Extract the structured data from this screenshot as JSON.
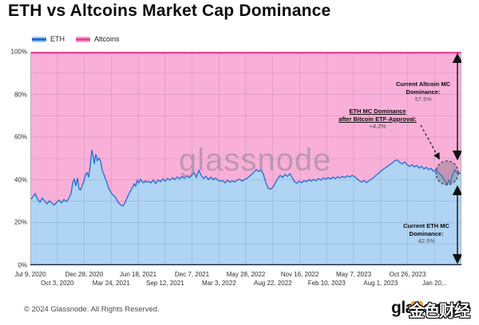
{
  "title": "ETH vs Altcoins Market Cap Dominance",
  "watermark": "glassnode",
  "legend": [
    {
      "label": "ETH",
      "line_color": "#1d6ed2",
      "halo_color": "#9ec7ee"
    },
    {
      "label": "Altcoins",
      "line_color": "#e8469a",
      "halo_color": "#f59cc9"
    }
  ],
  "annotations": {
    "altcoin": {
      "line1": "Current Altcoin MC",
      "line2": "Dominance:",
      "value": "57.5%"
    },
    "etf": {
      "line1": "ETH MC Dominance",
      "line2": "after Bitcoin ETF-Approval:",
      "value": "+4.2%"
    },
    "eth": {
      "line1": "Current ETH MC",
      "line2": "Dominance:",
      "value": "42.5%"
    }
  },
  "footer": {
    "copyright": "© 2024 Glassnode. All Rights Reserved.",
    "logo": "glassnode",
    "logo_overlay": "金色财经"
  },
  "colors": {
    "eth_line": "#1d6ed2",
    "eth_fill": "#b0d4f3",
    "alt_line": "#e8469a",
    "alt_fill": "#f9b0d8",
    "grid": "rgba(90,90,130,0.16)",
    "axis_bottom": "#18263f",
    "plot_border": "#b2b2ba",
    "arrow": "#111111",
    "circle_fill": "rgba(105,105,120,0.38)",
    "circle_stroke": "#4a4a52"
  },
  "chart_data": {
    "type": "area",
    "stacked_to_pct": 100,
    "title": "ETH vs Altcoins Market Cap Dominance",
    "x_range": [
      "Jul 9, 2020",
      "Jan 20, 2024"
    ],
    "ylim": [
      0,
      100
    ],
    "grid": true,
    "y_ticks": [
      "0%",
      "20%",
      "40%",
      "60%",
      "80%",
      "100%"
    ],
    "x_ticks_row1": [
      "Jul 9, 2020",
      "Dec 28, 2020",
      "Jun 18, 2021",
      "Dec 7, 2021",
      "May 28, 2022",
      "Nov 16, 2022",
      "May 7, 2023",
      "Oct 26, 2023"
    ],
    "x_ticks_row2": [
      "Oct 3, 2020",
      "Mar 24, 2021",
      "Sep 12, 2021",
      "Mar 3, 2022",
      "Aug 22, 2022",
      "Feb 10, 2023",
      "Aug 1, 2023",
      "Jan 20,.."
    ],
    "current_eth_dominance_pct": 42.5,
    "current_altcoin_dominance_pct": 57.5,
    "eth_dominance_change_after_etf_pct": 4.2,
    "series": [
      {
        "name": "ETH",
        "color": "#1d6ed2",
        "fill": "#b0d4f3",
        "x_unit": "plot-x 0-540 mapped linearly Jul 9 2020 to Jan 20 2024",
        "y_unit": "% dominance",
        "points": [
          [
            0,
            30.5
          ],
          [
            3,
            32
          ],
          [
            6,
            33.5
          ],
          [
            9,
            31
          ],
          [
            12,
            29.5
          ],
          [
            15,
            31.5
          ],
          [
            18,
            30
          ],
          [
            21,
            28.8
          ],
          [
            24,
            30.2
          ],
          [
            27,
            29
          ],
          [
            30,
            28.2
          ],
          [
            33,
            29.5
          ],
          [
            36,
            30.5
          ],
          [
            39,
            29.2
          ],
          [
            42,
            30.8
          ],
          [
            45,
            29.8
          ],
          [
            48,
            31.2
          ],
          [
            51,
            33.5
          ],
          [
            53,
            38.5
          ],
          [
            55,
            40.3
          ],
          [
            57,
            37.2
          ],
          [
            59,
            40.8
          ],
          [
            61,
            35.8
          ],
          [
            63,
            35.3
          ],
          [
            65,
            37.5
          ],
          [
            67,
            39.2
          ],
          [
            69,
            42.3
          ],
          [
            71,
            43.4
          ],
          [
            73,
            41.2
          ],
          [
            75,
            46.5
          ],
          [
            77,
            54
          ],
          [
            79,
            50.5
          ],
          [
            80,
            47.5
          ],
          [
            82,
            52
          ],
          [
            84,
            49
          ],
          [
            86,
            50.2
          ],
          [
            88,
            48.8
          ],
          [
            90,
            44.5
          ],
          [
            92,
            42.8
          ],
          [
            94,
            40.5
          ],
          [
            96,
            38.8
          ],
          [
            98,
            36
          ],
          [
            100,
            34.8
          ],
          [
            102,
            33.6
          ],
          [
            104,
            32.7
          ],
          [
            106,
            32.2
          ],
          [
            108,
            30.8
          ],
          [
            110,
            29.6
          ],
          [
            112,
            28.7
          ],
          [
            114,
            28.1
          ],
          [
            116,
            27.8
          ],
          [
            118,
            28.8
          ],
          [
            120,
            30.6
          ],
          [
            122,
            32.2
          ],
          [
            124,
            33.8
          ],
          [
            126,
            35.2
          ],
          [
            128,
            36.4
          ],
          [
            130,
            38.2
          ],
          [
            132,
            37
          ],
          [
            134,
            39.8
          ],
          [
            136,
            38.6
          ],
          [
            138,
            40.3
          ],
          [
            140,
            39.2
          ],
          [
            142,
            38.6
          ],
          [
            144,
            39.6
          ],
          [
            146,
            38.9
          ],
          [
            148,
            39.3
          ],
          [
            151,
            38.6
          ],
          [
            154,
            39.9
          ],
          [
            157,
            38.3
          ],
          [
            160,
            40
          ],
          [
            163,
            39.1
          ],
          [
            166,
            40.4
          ],
          [
            169,
            39.4
          ],
          [
            172,
            40.7
          ],
          [
            175,
            39.8
          ],
          [
            178,
            41
          ],
          [
            181,
            40.1
          ],
          [
            184,
            41.4
          ],
          [
            187,
            40.4
          ],
          [
            190,
            41.6
          ],
          [
            193,
            40.7
          ],
          [
            196,
            41.9
          ],
          [
            199,
            41
          ],
          [
            202,
            42
          ],
          [
            205,
            43.4
          ],
          [
            208,
            41.2
          ],
          [
            211,
            44.4
          ],
          [
            214,
            42.1
          ],
          [
            217,
            40.6
          ],
          [
            220,
            41.7
          ],
          [
            223,
            40.1
          ],
          [
            226,
            41.3
          ],
          [
            229,
            40.1
          ],
          [
            232,
            40.8
          ],
          [
            235,
            39.9
          ],
          [
            238,
            39.4
          ],
          [
            241,
            39.6
          ],
          [
            244,
            38.6
          ],
          [
            247,
            39.8
          ],
          [
            250,
            38.9
          ],
          [
            253,
            39.6
          ],
          [
            256,
            38.9
          ],
          [
            259,
            39.9
          ],
          [
            262,
            40.3
          ],
          [
            265,
            39.4
          ],
          [
            268,
            40.1
          ],
          [
            271,
            40.6
          ],
          [
            274,
            41.5
          ],
          [
            277,
            42.5
          ],
          [
            280,
            43.6
          ],
          [
            283,
            44.8
          ],
          [
            286,
            43.9
          ],
          [
            289,
            44.6
          ],
          [
            292,
            42.6
          ],
          [
            295,
            38.6
          ],
          [
            298,
            36.1
          ],
          [
            301,
            35.6
          ],
          [
            304,
            36.6
          ],
          [
            307,
            38.6
          ],
          [
            310,
            40.6
          ],
          [
            313,
            42.1
          ],
          [
            316,
            41.1
          ],
          [
            319,
            42.6
          ],
          [
            322,
            41.6
          ],
          [
            325,
            42.9
          ],
          [
            328,
            41.1
          ],
          [
            331,
            39.1
          ],
          [
            334,
            38.4
          ],
          [
            337,
            39.4
          ],
          [
            340,
            38.7
          ],
          [
            343,
            39.7
          ],
          [
            346,
            39.1
          ],
          [
            349,
            40.1
          ],
          [
            352,
            39.4
          ],
          [
            355,
            40.3
          ],
          [
            358,
            39.6
          ],
          [
            361,
            40.6
          ],
          [
            364,
            39.9
          ],
          [
            367,
            40.9
          ],
          [
            370,
            40.3
          ],
          [
            373,
            41.1
          ],
          [
            376,
            40.4
          ],
          [
            379,
            41.3
          ],
          [
            382,
            40.6
          ],
          [
            385,
            41.4
          ],
          [
            388,
            40.9
          ],
          [
            391,
            41.6
          ],
          [
            394,
            41.1
          ],
          [
            397,
            41.9
          ],
          [
            400,
            41.3
          ],
          [
            403,
            42.1
          ],
          [
            406,
            41.5
          ],
          [
            409,
            40.6
          ],
          [
            412,
            39.6
          ],
          [
            415,
            38.9
          ],
          [
            418,
            39.7
          ],
          [
            421,
            38.7
          ],
          [
            424,
            39.5
          ],
          [
            427,
            40.3
          ],
          [
            430,
            41.1
          ],
          [
            433,
            42.1
          ],
          [
            436,
            43.1
          ],
          [
            439,
            44.1
          ],
          [
            442,
            44.9
          ],
          [
            445,
            45.7
          ],
          [
            448,
            46.4
          ],
          [
            451,
            47.3
          ],
          [
            454,
            48.1
          ],
          [
            457,
            49.1
          ],
          [
            460,
            49.3
          ],
          [
            463,
            48.1
          ],
          [
            466,
            47.5
          ],
          [
            469,
            48.4
          ],
          [
            472,
            47
          ],
          [
            475,
            46.3
          ],
          [
            478,
            47.1
          ],
          [
            481,
            46
          ],
          [
            484,
            46.8
          ],
          [
            487,
            45.5
          ],
          [
            490,
            46.4
          ],
          [
            493,
            45.1
          ],
          [
            496,
            45.9
          ],
          [
            499,
            44.7
          ],
          [
            502,
            45.4
          ],
          [
            505,
            44
          ],
          [
            508,
            44.7
          ],
          [
            511,
            43.4
          ],
          [
            514,
            42.5
          ],
          [
            516,
            41.5
          ],
          [
            518,
            40.4
          ],
          [
            520,
            38.8
          ],
          [
            522,
            38.1
          ],
          [
            524,
            39.7
          ],
          [
            526,
            38.7
          ],
          [
            528,
            41.3
          ],
          [
            530,
            43.3
          ],
          [
            532,
            44.7
          ],
          [
            534,
            43.5
          ],
          [
            536,
            42.8
          ],
          [
            538,
            43.3
          ],
          [
            540,
            42.5
          ]
        ]
      },
      {
        "name": "Altcoins",
        "color": "#e8469a",
        "fill": "#f9b0d8",
        "definition": "100% minus ETH dominance (stacked complement, drawn as top band)"
      }
    ]
  }
}
